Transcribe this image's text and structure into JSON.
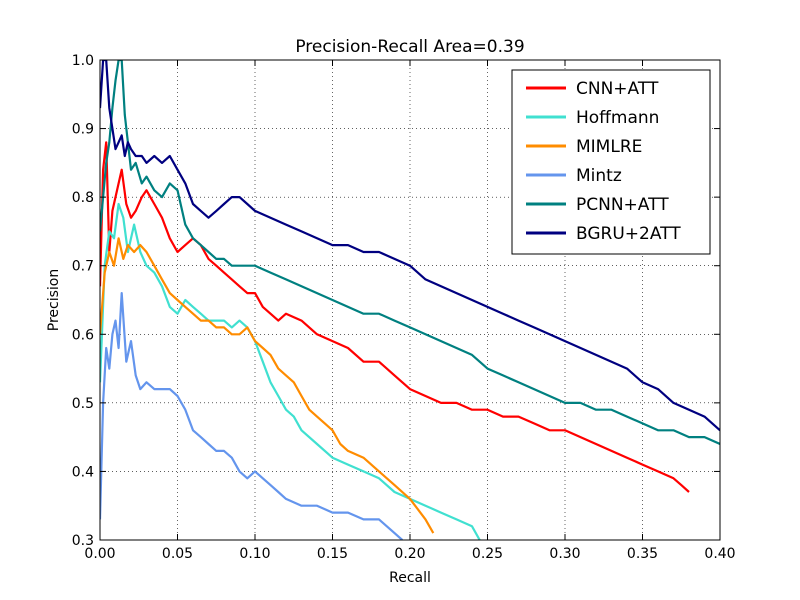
{
  "chart_data": {
    "type": "line",
    "title": "Precision-Recall Area=0.39",
    "xlabel": "Recall",
    "ylabel": "Precision",
    "xlim": [
      0.0,
      0.4
    ],
    "ylim": [
      0.3,
      1.0
    ],
    "xticks": [
      0.0,
      0.05,
      0.1,
      0.15,
      0.2,
      0.25,
      0.3,
      0.35,
      0.4
    ],
    "xtick_labels": [
      "0.00",
      "0.05",
      "0.10",
      "0.15",
      "0.20",
      "0.25",
      "0.30",
      "0.35",
      "0.40"
    ],
    "yticks": [
      0.3,
      0.4,
      0.5,
      0.6,
      0.7,
      0.8,
      0.9,
      1.0
    ],
    "ytick_labels": [
      "0.3",
      "0.4",
      "0.5",
      "0.6",
      "0.7",
      "0.8",
      "0.9",
      "1.0"
    ],
    "grid": true,
    "legend_position": "top-right",
    "series": [
      {
        "name": "CNN+ATT",
        "color": "#ff0000",
        "x": [
          0.0,
          0.002,
          0.004,
          0.006,
          0.008,
          0.01,
          0.012,
          0.014,
          0.017,
          0.02,
          0.023,
          0.027,
          0.03,
          0.035,
          0.04,
          0.045,
          0.05,
          0.055,
          0.06,
          0.065,
          0.07,
          0.075,
          0.08,
          0.085,
          0.09,
          0.095,
          0.1,
          0.105,
          0.11,
          0.115,
          0.12,
          0.13,
          0.14,
          0.15,
          0.16,
          0.17,
          0.18,
          0.19,
          0.2,
          0.21,
          0.22,
          0.23,
          0.24,
          0.25,
          0.26,
          0.27,
          0.28,
          0.29,
          0.3,
          0.31,
          0.32,
          0.33,
          0.34,
          0.35,
          0.36,
          0.37,
          0.375,
          0.38
        ],
        "y": [
          0.67,
          0.84,
          0.88,
          0.72,
          0.78,
          0.8,
          0.82,
          0.84,
          0.79,
          0.77,
          0.78,
          0.8,
          0.81,
          0.79,
          0.77,
          0.74,
          0.72,
          0.73,
          0.74,
          0.73,
          0.71,
          0.7,
          0.69,
          0.68,
          0.67,
          0.66,
          0.66,
          0.64,
          0.63,
          0.62,
          0.63,
          0.62,
          0.6,
          0.59,
          0.58,
          0.56,
          0.56,
          0.54,
          0.52,
          0.51,
          0.5,
          0.5,
          0.49,
          0.49,
          0.48,
          0.48,
          0.47,
          0.46,
          0.46,
          0.45,
          0.44,
          0.43,
          0.42,
          0.41,
          0.4,
          0.39,
          0.38,
          0.37
        ]
      },
      {
        "name": "Hoffmann",
        "color": "#40e0d0",
        "x": [
          0.0,
          0.003,
          0.006,
          0.009,
          0.012,
          0.015,
          0.018,
          0.022,
          0.026,
          0.03,
          0.035,
          0.04,
          0.045,
          0.05,
          0.055,
          0.06,
          0.065,
          0.07,
          0.075,
          0.08,
          0.085,
          0.09,
          0.095,
          0.1,
          0.105,
          0.11,
          0.115,
          0.12,
          0.125,
          0.13,
          0.14,
          0.15,
          0.16,
          0.17,
          0.18,
          0.19,
          0.2,
          0.21,
          0.22,
          0.23,
          0.24,
          0.245
        ],
        "y": [
          0.53,
          0.7,
          0.75,
          0.74,
          0.79,
          0.77,
          0.72,
          0.76,
          0.72,
          0.7,
          0.69,
          0.67,
          0.64,
          0.63,
          0.65,
          0.64,
          0.63,
          0.62,
          0.62,
          0.62,
          0.61,
          0.62,
          0.61,
          0.59,
          0.56,
          0.53,
          0.51,
          0.49,
          0.48,
          0.46,
          0.44,
          0.42,
          0.41,
          0.4,
          0.39,
          0.37,
          0.36,
          0.35,
          0.34,
          0.33,
          0.32,
          0.3
        ]
      },
      {
        "name": "MIMLRE",
        "color": "#ff8c00",
        "x": [
          0.0,
          0.003,
          0.006,
          0.009,
          0.012,
          0.015,
          0.018,
          0.022,
          0.026,
          0.03,
          0.035,
          0.04,
          0.045,
          0.05,
          0.055,
          0.06,
          0.065,
          0.07,
          0.075,
          0.08,
          0.085,
          0.09,
          0.095,
          0.1,
          0.105,
          0.11,
          0.115,
          0.12,
          0.125,
          0.13,
          0.135,
          0.14,
          0.145,
          0.15,
          0.155,
          0.16,
          0.17,
          0.18,
          0.19,
          0.2,
          0.21,
          0.215
        ],
        "y": [
          0.6,
          0.69,
          0.72,
          0.7,
          0.74,
          0.71,
          0.73,
          0.72,
          0.73,
          0.72,
          0.7,
          0.68,
          0.66,
          0.65,
          0.64,
          0.63,
          0.62,
          0.62,
          0.61,
          0.61,
          0.6,
          0.6,
          0.61,
          0.59,
          0.58,
          0.57,
          0.55,
          0.54,
          0.53,
          0.51,
          0.49,
          0.48,
          0.47,
          0.46,
          0.44,
          0.43,
          0.42,
          0.4,
          0.38,
          0.36,
          0.33,
          0.31
        ]
      },
      {
        "name": "Mintz",
        "color": "#6495ed",
        "x": [
          0.0,
          0.002,
          0.004,
          0.006,
          0.008,
          0.01,
          0.012,
          0.014,
          0.017,
          0.02,
          0.023,
          0.026,
          0.03,
          0.035,
          0.04,
          0.045,
          0.05,
          0.055,
          0.06,
          0.065,
          0.07,
          0.075,
          0.08,
          0.085,
          0.09,
          0.095,
          0.1,
          0.105,
          0.11,
          0.115,
          0.12,
          0.13,
          0.14,
          0.15,
          0.16,
          0.17,
          0.18,
          0.19,
          0.195
        ],
        "y": [
          0.33,
          0.5,
          0.58,
          0.55,
          0.6,
          0.62,
          0.58,
          0.66,
          0.56,
          0.59,
          0.54,
          0.52,
          0.53,
          0.52,
          0.52,
          0.52,
          0.51,
          0.49,
          0.46,
          0.45,
          0.44,
          0.43,
          0.43,
          0.42,
          0.4,
          0.39,
          0.4,
          0.39,
          0.38,
          0.37,
          0.36,
          0.35,
          0.35,
          0.34,
          0.34,
          0.33,
          0.33,
          0.31,
          0.3
        ]
      },
      {
        "name": "PCNN+ATT",
        "color": "#008080",
        "x": [
          0.0,
          0.002,
          0.004,
          0.006,
          0.008,
          0.01,
          0.012,
          0.014,
          0.016,
          0.018,
          0.02,
          0.023,
          0.027,
          0.03,
          0.035,
          0.04,
          0.045,
          0.05,
          0.055,
          0.06,
          0.065,
          0.07,
          0.075,
          0.08,
          0.085,
          0.09,
          0.095,
          0.1,
          0.11,
          0.12,
          0.13,
          0.14,
          0.15,
          0.16,
          0.17,
          0.18,
          0.19,
          0.2,
          0.21,
          0.22,
          0.23,
          0.24,
          0.25,
          0.26,
          0.27,
          0.28,
          0.29,
          0.3,
          0.31,
          0.32,
          0.33,
          0.34,
          0.35,
          0.36,
          0.37,
          0.38,
          0.39,
          0.4
        ],
        "y": [
          0.75,
          0.8,
          0.85,
          0.88,
          0.93,
          0.97,
          1.0,
          1.0,
          0.92,
          0.88,
          0.84,
          0.85,
          0.82,
          0.83,
          0.81,
          0.8,
          0.82,
          0.81,
          0.76,
          0.74,
          0.73,
          0.72,
          0.71,
          0.71,
          0.7,
          0.7,
          0.7,
          0.7,
          0.69,
          0.68,
          0.67,
          0.66,
          0.65,
          0.64,
          0.63,
          0.63,
          0.62,
          0.61,
          0.6,
          0.59,
          0.58,
          0.57,
          0.55,
          0.54,
          0.53,
          0.52,
          0.51,
          0.5,
          0.5,
          0.49,
          0.49,
          0.48,
          0.47,
          0.46,
          0.46,
          0.45,
          0.45,
          0.44
        ]
      },
      {
        "name": "BGRU+2ATT",
        "color": "#000080",
        "x": [
          0.0,
          0.002,
          0.004,
          0.006,
          0.008,
          0.01,
          0.012,
          0.014,
          0.016,
          0.018,
          0.02,
          0.023,
          0.027,
          0.03,
          0.035,
          0.04,
          0.045,
          0.05,
          0.055,
          0.06,
          0.065,
          0.07,
          0.075,
          0.08,
          0.085,
          0.09,
          0.095,
          0.1,
          0.11,
          0.12,
          0.13,
          0.14,
          0.15,
          0.16,
          0.17,
          0.18,
          0.19,
          0.2,
          0.21,
          0.22,
          0.23,
          0.24,
          0.25,
          0.26,
          0.27,
          0.28,
          0.29,
          0.3,
          0.31,
          0.32,
          0.33,
          0.34,
          0.35,
          0.36,
          0.37,
          0.38,
          0.39,
          0.4
        ],
        "y": [
          0.93,
          1.0,
          1.0,
          0.93,
          0.9,
          0.87,
          0.88,
          0.89,
          0.86,
          0.88,
          0.87,
          0.86,
          0.86,
          0.85,
          0.86,
          0.85,
          0.86,
          0.84,
          0.82,
          0.79,
          0.78,
          0.77,
          0.78,
          0.79,
          0.8,
          0.8,
          0.79,
          0.78,
          0.77,
          0.76,
          0.75,
          0.74,
          0.73,
          0.73,
          0.72,
          0.72,
          0.71,
          0.7,
          0.68,
          0.67,
          0.66,
          0.65,
          0.64,
          0.63,
          0.62,
          0.61,
          0.6,
          0.59,
          0.58,
          0.57,
          0.56,
          0.55,
          0.53,
          0.52,
          0.5,
          0.49,
          0.48,
          0.46
        ]
      }
    ]
  }
}
